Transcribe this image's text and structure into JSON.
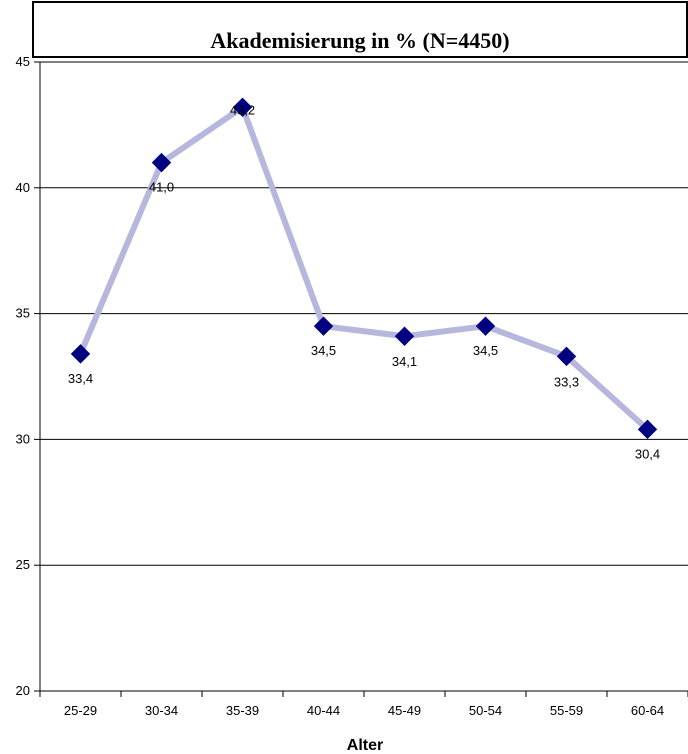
{
  "chart_data": {
    "type": "line",
    "title": "Akademisierung in % (N=4450)",
    "xlabel": "Alter",
    "ylabel": "",
    "categories": [
      "25-29",
      "30-34",
      "35-39",
      "40-44",
      "45-49",
      "50-54",
      "55-59",
      "60-64"
    ],
    "values": [
      33.4,
      41.0,
      43.2,
      34.5,
      34.1,
      34.5,
      33.3,
      30.4
    ],
    "data_labels": [
      "33,4",
      "41,0",
      "43,2",
      "34,5",
      "34,1",
      "34,5",
      "33,3",
      "30,4"
    ],
    "ylim": [
      20,
      45
    ],
    "yticks": [
      20,
      25,
      30,
      35,
      40,
      45
    ],
    "grid": true,
    "legend": "none",
    "colors": {
      "line": "#B7B7DD",
      "marker": "#000080",
      "gridline": "#000000"
    }
  }
}
